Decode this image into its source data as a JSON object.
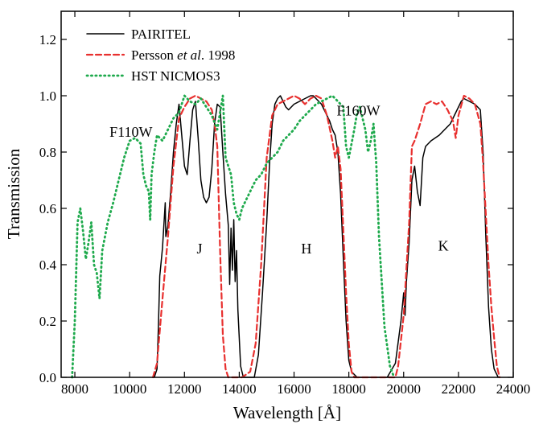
{
  "chart_data": {
    "type": "line",
    "xlabel": "Wavelength [Å]",
    "ylabel": "Transmission",
    "xlim": [
      7500,
      24000
    ],
    "ylim": [
      0.0,
      1.3
    ],
    "x_ticks": [
      8000,
      10000,
      12000,
      14000,
      16000,
      18000,
      20000,
      22000,
      24000
    ],
    "x_tick_labels": [
      "8000",
      "10000",
      "12000",
      "14000",
      "16000",
      "18000",
      "20000",
      "22000",
      "24000"
    ],
    "y_ticks": [
      0.0,
      0.2,
      0.4,
      0.6,
      0.8,
      1.0,
      1.2
    ],
    "y_tick_labels": [
      "0.0",
      "0.2",
      "0.4",
      "0.6",
      "0.8",
      "1.0",
      "1.2"
    ],
    "grid": false,
    "legend_position": "top-left",
    "legend": [
      {
        "label_parts": [
          {
            "t": "PAIRITEL",
            "i": false
          }
        ]
      },
      {
        "label_parts": [
          {
            "t": "Persson ",
            "i": false
          },
          {
            "t": "et al",
            "i": true
          },
          {
            "t": ".  1998",
            "i": false
          }
        ]
      },
      {
        "label_parts": [
          {
            "t": "HST NICMOS3",
            "i": false
          }
        ]
      }
    ],
    "annotations": [
      {
        "text": "F110W",
        "x": 10050,
        "y": 0.855
      },
      {
        "text": "J",
        "x": 12550,
        "y": 0.44
      },
      {
        "text": "H",
        "x": 16450,
        "y": 0.44
      },
      {
        "text": "F160W",
        "x": 18350,
        "y": 0.93
      },
      {
        "text": "K",
        "x": 21450,
        "y": 0.45
      }
    ],
    "series": [
      {
        "color": "#000000",
        "style": "solid",
        "points": [
          [
            10900,
            0
          ],
          [
            11000,
            0.03
          ],
          [
            11050,
            0.18
          ],
          [
            11100,
            0.36
          ],
          [
            11200,
            0.46
          ],
          [
            11300,
            0.62
          ],
          [
            11320,
            0.5
          ],
          [
            11400,
            0.54
          ],
          [
            11500,
            0.66
          ],
          [
            11600,
            0.8
          ],
          [
            11700,
            0.9
          ],
          [
            11800,
            0.97
          ],
          [
            11900,
            0.86
          ],
          [
            12000,
            0.75
          ],
          [
            12100,
            0.72
          ],
          [
            12200,
            0.84
          ],
          [
            12300,
            0.95
          ],
          [
            12400,
            0.98
          ],
          [
            12500,
            0.85
          ],
          [
            12600,
            0.7
          ],
          [
            12700,
            0.64
          ],
          [
            12800,
            0.62
          ],
          [
            12900,
            0.64
          ],
          [
            13000,
            0.74
          ],
          [
            13100,
            0.9
          ],
          [
            13200,
            0.97
          ],
          [
            13300,
            0.96
          ],
          [
            13400,
            0.8
          ],
          [
            13500,
            0.65
          ],
          [
            13600,
            0.54
          ],
          [
            13650,
            0.33
          ],
          [
            13700,
            0.53
          ],
          [
            13750,
            0.38
          ],
          [
            13800,
            0.56
          ],
          [
            13850,
            0.34
          ],
          [
            13900,
            0.45
          ],
          [
            13950,
            0.24
          ],
          [
            14050,
            0.04
          ],
          [
            14150,
            0
          ],
          [
            14550,
            0
          ],
          [
            14700,
            0.08
          ],
          [
            14850,
            0.3
          ],
          [
            15000,
            0.55
          ],
          [
            15100,
            0.75
          ],
          [
            15200,
            0.9
          ],
          [
            15300,
            0.97
          ],
          [
            15400,
            0.99
          ],
          [
            15500,
            1.0
          ],
          [
            15600,
            0.98
          ],
          [
            15700,
            0.96
          ],
          [
            15800,
            0.95
          ],
          [
            15900,
            0.96
          ],
          [
            16000,
            0.97
          ],
          [
            16200,
            0.98
          ],
          [
            16400,
            0.99
          ],
          [
            16600,
            1.0
          ],
          [
            16700,
            1.0
          ],
          [
            16800,
            0.99
          ],
          [
            17000,
            0.97
          ],
          [
            17200,
            0.93
          ],
          [
            17300,
            0.91
          ],
          [
            17400,
            0.88
          ],
          [
            17500,
            0.86
          ],
          [
            17600,
            0.8
          ],
          [
            17700,
            0.65
          ],
          [
            17800,
            0.42
          ],
          [
            17900,
            0.2
          ],
          [
            18000,
            0.06
          ],
          [
            18100,
            0.02
          ],
          [
            18300,
            0
          ],
          [
            19400,
            0
          ],
          [
            19700,
            0.05
          ],
          [
            19900,
            0.2
          ],
          [
            20000,
            0.3
          ],
          [
            20050,
            0.22
          ],
          [
            20100,
            0.34
          ],
          [
            20200,
            0.48
          ],
          [
            20300,
            0.7
          ],
          [
            20400,
            0.75
          ],
          [
            20500,
            0.66
          ],
          [
            20600,
            0.61
          ],
          [
            20700,
            0.78
          ],
          [
            20800,
            0.82
          ],
          [
            21000,
            0.84
          ],
          [
            21300,
            0.86
          ],
          [
            21500,
            0.88
          ],
          [
            21700,
            0.9
          ],
          [
            21900,
            0.94
          ],
          [
            22100,
            0.98
          ],
          [
            22200,
            0.99
          ],
          [
            22400,
            0.98
          ],
          [
            22600,
            0.97
          ],
          [
            22800,
            0.95
          ],
          [
            22900,
            0.8
          ],
          [
            23000,
            0.5
          ],
          [
            23100,
            0.25
          ],
          [
            23200,
            0.1
          ],
          [
            23300,
            0.03
          ],
          [
            23450,
            0
          ]
        ]
      },
      {
        "color": "#e8302f",
        "style": "dashed",
        "points": [
          [
            10850,
            0
          ],
          [
            11000,
            0.05
          ],
          [
            11200,
            0.28
          ],
          [
            11400,
            0.5
          ],
          [
            11600,
            0.75
          ],
          [
            11800,
            0.92
          ],
          [
            12000,
            0.96
          ],
          [
            12200,
            0.99
          ],
          [
            12400,
            1.0
          ],
          [
            12600,
            0.99
          ],
          [
            12800,
            0.98
          ],
          [
            13000,
            0.95
          ],
          [
            13100,
            0.9
          ],
          [
            13200,
            0.82
          ],
          [
            13300,
            0.45
          ],
          [
            13400,
            0.15
          ],
          [
            13500,
            0.03
          ],
          [
            13600,
            0
          ],
          [
            14100,
            0
          ],
          [
            14400,
            0.02
          ],
          [
            14600,
            0.12
          ],
          [
            14800,
            0.4
          ],
          [
            15000,
            0.78
          ],
          [
            15200,
            0.93
          ],
          [
            15400,
            0.97
          ],
          [
            15600,
            0.98
          ],
          [
            15800,
            0.99
          ],
          [
            16000,
            1.0
          ],
          [
            16200,
            0.99
          ],
          [
            16400,
            0.97
          ],
          [
            16600,
            0.99
          ],
          [
            16800,
            1.0
          ],
          [
            17000,
            0.99
          ],
          [
            17200,
            0.93
          ],
          [
            17400,
            0.84
          ],
          [
            17500,
            0.78
          ],
          [
            17600,
            0.82
          ],
          [
            17700,
            0.74
          ],
          [
            17800,
            0.52
          ],
          [
            17900,
            0.3
          ],
          [
            18000,
            0.12
          ],
          [
            18100,
            0.02
          ],
          [
            18200,
            0
          ],
          [
            19700,
            0
          ],
          [
            19800,
            0.04
          ],
          [
            20000,
            0.22
          ],
          [
            20200,
            0.55
          ],
          [
            20300,
            0.82
          ],
          [
            20400,
            0.84
          ],
          [
            20600,
            0.9
          ],
          [
            20800,
            0.97
          ],
          [
            21000,
            0.98
          ],
          [
            21200,
            0.97
          ],
          [
            21400,
            0.98
          ],
          [
            21600,
            0.95
          ],
          [
            21800,
            0.91
          ],
          [
            21900,
            0.85
          ],
          [
            22000,
            0.93
          ],
          [
            22200,
            1.0
          ],
          [
            22400,
            0.99
          ],
          [
            22600,
            0.97
          ],
          [
            22800,
            0.9
          ],
          [
            22900,
            0.76
          ],
          [
            23000,
            0.58
          ],
          [
            23100,
            0.4
          ],
          [
            23200,
            0.25
          ],
          [
            23300,
            0.14
          ],
          [
            23400,
            0.04
          ],
          [
            23500,
            0
          ]
        ]
      },
      {
        "color": "#1faa4d",
        "style": "dotted",
        "points": [
          [
            7900,
            0
          ],
          [
            8000,
            0.2
          ],
          [
            8100,
            0.55
          ],
          [
            8200,
            0.6
          ],
          [
            8300,
            0.52
          ],
          [
            8400,
            0.42
          ],
          [
            8500,
            0.48
          ],
          [
            8600,
            0.55
          ],
          [
            8700,
            0.4
          ],
          [
            8800,
            0.37
          ],
          [
            8900,
            0.28
          ],
          [
            9000,
            0.45
          ],
          [
            9200,
            0.55
          ],
          [
            9400,
            0.62
          ],
          [
            9600,
            0.7
          ],
          [
            9800,
            0.78
          ],
          [
            10000,
            0.84
          ],
          [
            10200,
            0.85
          ],
          [
            10400,
            0.83
          ],
          [
            10500,
            0.72
          ],
          [
            10600,
            0.68
          ],
          [
            10700,
            0.66
          ],
          [
            10750,
            0.56
          ],
          [
            10800,
            0.72
          ],
          [
            10900,
            0.8
          ],
          [
            11000,
            0.86
          ],
          [
            11200,
            0.84
          ],
          [
            11400,
            0.88
          ],
          [
            11600,
            0.92
          ],
          [
            11800,
            0.94
          ],
          [
            12000,
            1.0
          ],
          [
            12200,
            0.98
          ],
          [
            12400,
            0.97
          ],
          [
            12600,
            0.99
          ],
          [
            12800,
            0.96
          ],
          [
            13000,
            0.93
          ],
          [
            13200,
            0.88
          ],
          [
            13400,
            1.0
          ],
          [
            13500,
            0.78
          ],
          [
            13700,
            0.72
          ],
          [
            13800,
            0.62
          ],
          [
            13900,
            0.58
          ],
          [
            14000,
            0.56
          ],
          [
            14100,
            0.6
          ],
          [
            14200,
            0.62
          ],
          [
            14400,
            0.66
          ],
          [
            14600,
            0.7
          ],
          [
            14800,
            0.72
          ],
          [
            15000,
            0.76
          ],
          [
            15200,
            0.78
          ],
          [
            15400,
            0.8
          ],
          [
            15600,
            0.84
          ],
          [
            15800,
            0.86
          ],
          [
            16000,
            0.88
          ],
          [
            16200,
            0.91
          ],
          [
            16400,
            0.93
          ],
          [
            16600,
            0.95
          ],
          [
            16800,
            0.97
          ],
          [
            17000,
            0.98
          ],
          [
            17200,
            0.99
          ],
          [
            17400,
            1.0
          ],
          [
            17600,
            0.98
          ],
          [
            17800,
            0.96
          ],
          [
            17900,
            0.82
          ],
          [
            18000,
            0.78
          ],
          [
            18200,
            0.88
          ],
          [
            18300,
            0.94
          ],
          [
            18400,
            0.96
          ],
          [
            18600,
            0.88
          ],
          [
            18700,
            0.8
          ],
          [
            18800,
            0.84
          ],
          [
            18900,
            0.9
          ],
          [
            19000,
            0.76
          ],
          [
            19100,
            0.5
          ],
          [
            19300,
            0.18
          ],
          [
            19500,
            0.04
          ],
          [
            19650,
            0
          ]
        ]
      }
    ]
  }
}
